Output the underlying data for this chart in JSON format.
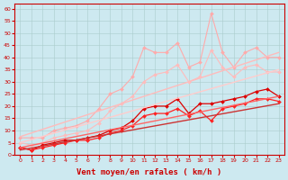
{
  "title": "",
  "xlabel": "Vent moyen/en rafales ( km/h )",
  "ylabel": "",
  "xlim": [
    -0.5,
    23.5
  ],
  "ylim": [
    0,
    62
  ],
  "yticks": [
    0,
    5,
    10,
    15,
    20,
    25,
    30,
    35,
    40,
    45,
    50,
    55,
    60
  ],
  "xticks": [
    0,
    1,
    2,
    3,
    4,
    5,
    6,
    7,
    8,
    9,
    10,
    11,
    12,
    13,
    14,
    15,
    16,
    17,
    18,
    19,
    20,
    21,
    22,
    23
  ],
  "background_color": "#cde9f0",
  "grid_color": "#aacccc",
  "series": [
    {
      "x": [
        0,
        1,
        2,
        3,
        4,
        5,
        6,
        7,
        8,
        9,
        10,
        11,
        12,
        13,
        14,
        15,
        16,
        17,
        18,
        19,
        20,
        21,
        22,
        23
      ],
      "y": [
        7,
        7,
        7,
        10,
        11,
        12,
        14,
        19,
        25,
        27,
        32,
        44,
        42,
        42,
        46,
        36,
        38,
        58,
        42,
        36,
        42,
        44,
        40,
        40
      ],
      "color": "#ffaaaa",
      "marker": "D",
      "markersize": 2,
      "linewidth": 0.8,
      "linestyle": "-"
    },
    {
      "x": [
        0,
        1,
        2,
        3,
        4,
        5,
        6,
        7,
        8,
        9,
        10,
        11,
        12,
        13,
        14,
        15,
        16,
        17,
        18,
        19,
        20,
        21,
        22,
        23
      ],
      "y": [
        5,
        4,
        5,
        7,
        8,
        9,
        10,
        13,
        18,
        21,
        24,
        30,
        33,
        34,
        37,
        30,
        32,
        43,
        36,
        32,
        36,
        37,
        34,
        34
      ],
      "color": "#ffbbbb",
      "marker": "D",
      "markersize": 2,
      "linewidth": 0.8,
      "linestyle": "-"
    },
    {
      "x": [
        0,
        1,
        2,
        3,
        4,
        5,
        6,
        7,
        8,
        9,
        10,
        11,
        12,
        13,
        14,
        15,
        16,
        17,
        18,
        19,
        20,
        21,
        22,
        23
      ],
      "y": [
        3,
        2,
        4,
        5,
        6,
        6,
        7,
        8,
        10,
        11,
        14,
        19,
        20,
        20,
        23,
        17,
        21,
        21,
        22,
        23,
        24,
        26,
        27,
        24
      ],
      "color": "#dd0000",
      "marker": "D",
      "markersize": 2,
      "linewidth": 0.9,
      "linestyle": "-"
    },
    {
      "x": [
        0,
        1,
        2,
        3,
        4,
        5,
        6,
        7,
        8,
        9,
        10,
        11,
        12,
        13,
        14,
        15,
        16,
        17,
        18,
        19,
        20,
        21,
        22,
        23
      ],
      "y": [
        3,
        2,
        3,
        4,
        5,
        6,
        6,
        7,
        9,
        10,
        12,
        16,
        17,
        17,
        19,
        16,
        18,
        14,
        19,
        20,
        21,
        23,
        23,
        22
      ],
      "color": "#ff2222",
      "marker": "D",
      "markersize": 2,
      "linewidth": 0.9,
      "linestyle": "-"
    },
    {
      "x": [
        0,
        23
      ],
      "y": [
        7.5,
        42
      ],
      "color": "#ffbbbb",
      "marker": null,
      "markersize": 0,
      "linewidth": 1.0,
      "linestyle": "-"
    },
    {
      "x": [
        0,
        23
      ],
      "y": [
        5,
        35
      ],
      "color": "#ffcccc",
      "marker": null,
      "markersize": 0,
      "linewidth": 1.0,
      "linestyle": "-"
    },
    {
      "x": [
        0,
        23
      ],
      "y": [
        3,
        24
      ],
      "color": "#ff6666",
      "marker": null,
      "markersize": 0,
      "linewidth": 1.0,
      "linestyle": "-"
    },
    {
      "x": [
        0,
        23
      ],
      "y": [
        2,
        21
      ],
      "color": "#cc3333",
      "marker": null,
      "markersize": 0,
      "linewidth": 1.0,
      "linestyle": "-"
    }
  ]
}
